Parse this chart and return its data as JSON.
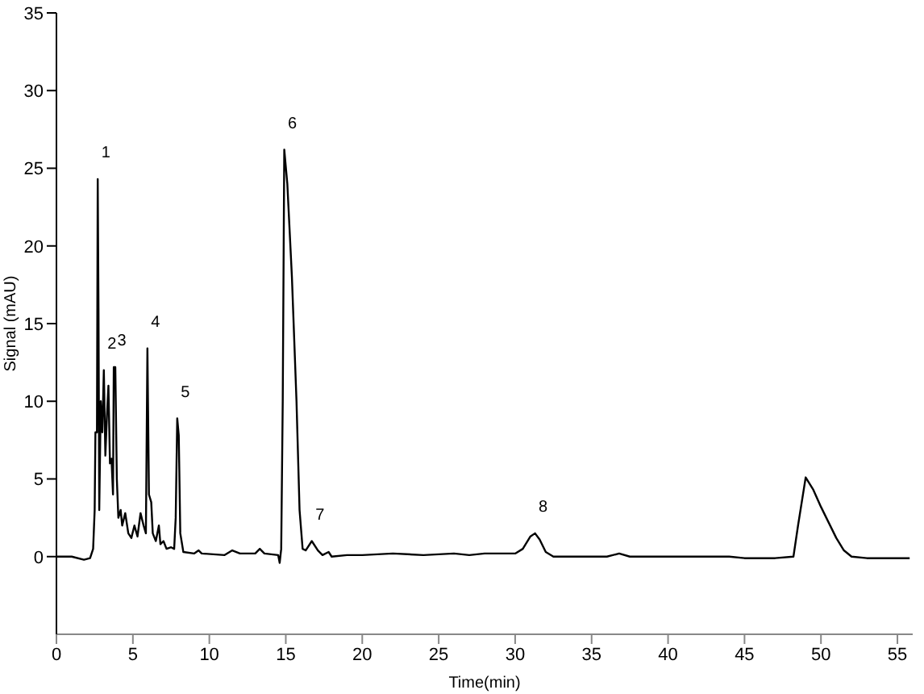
{
  "chart_data": {
    "type": "line",
    "xlabel": "Time(min)",
    "ylabel": "Signal (mAU)",
    "xlim": [
      0,
      56
    ],
    "xticks": [
      0,
      5,
      10,
      15,
      20,
      25,
      30,
      35,
      40,
      45,
      50,
      55
    ],
    "ylim": [
      -5,
      35
    ],
    "yticks": [
      0,
      5,
      10,
      15,
      20,
      25,
      30,
      35
    ],
    "grid": false,
    "marker": "none",
    "line_style": "solid",
    "x": [
      0,
      1,
      1.8,
      2.2,
      2.4,
      2.5,
      2.55,
      2.65,
      2.7,
      2.75,
      2.8,
      2.9,
      3.0,
      3.1,
      3.2,
      3.3,
      3.4,
      3.5,
      3.6,
      3.7,
      3.75,
      3.85,
      3.95,
      4.05,
      4.2,
      4.3,
      4.5,
      4.7,
      4.9,
      5.1,
      5.3,
      5.5,
      5.7,
      5.85,
      5.95,
      6.05,
      6.2,
      6.3,
      6.5,
      6.7,
      6.8,
      7.0,
      7.2,
      7.5,
      7.7,
      7.8,
      7.9,
      8.0,
      8.1,
      8.3,
      9,
      9.3,
      9.5,
      11,
      11.5,
      12,
      13,
      13.3,
      13.6,
      14.5,
      14.6,
      14.7,
      14.8,
      14.9,
      15.1,
      15.4,
      15.7,
      15.9,
      16.1,
      16.3,
      16.7,
      17.1,
      17.4,
      17.8,
      18,
      19,
      20,
      22,
      24,
      26,
      27,
      28,
      29,
      30,
      30.5,
      31,
      31.3,
      31.6,
      32,
      32.5,
      34,
      36,
      36.8,
      37.5,
      40,
      42,
      44,
      45,
      47,
      48.2,
      48.5,
      49,
      49.5,
      50,
      50.5,
      51,
      51.5,
      52,
      53,
      55,
      55.8
    ],
    "series": [
      {
        "color": "#000000",
        "values": [
          0,
          0,
          -0.2,
          -0.1,
          0.5,
          3,
          8,
          8,
          24.3,
          16,
          3,
          10,
          8,
          12,
          6.5,
          9,
          11,
          6,
          6.3,
          4,
          12.2,
          12.2,
          5,
          2.5,
          3,
          2,
          2.8,
          1.5,
          1.2,
          2,
          1.3,
          2.8,
          2,
          1.5,
          13.4,
          4,
          3.5,
          1.5,
          1,
          2,
          0.8,
          1,
          0.5,
          0.6,
          0.5,
          2.5,
          8.9,
          7.8,
          1.5,
          0.3,
          0.2,
          0.4,
          0.2,
          0.1,
          0.4,
          0.2,
          0.2,
          0.5,
          0.2,
          0.1,
          -0.4,
          0.5,
          10,
          26.2,
          24,
          18,
          10,
          3,
          0.5,
          0.4,
          1,
          0.4,
          0.1,
          0.3,
          0,
          0.1,
          0.1,
          0.2,
          0.1,
          0.2,
          0.1,
          0.2,
          0.2,
          0.2,
          0.5,
          1.3,
          1.5,
          1.1,
          0.3,
          0,
          0,
          0,
          0.2,
          0,
          0,
          0,
          0,
          -0.1,
          -0.1,
          0,
          2,
          5.1,
          4.3,
          3.2,
          2.2,
          1.2,
          0.4,
          0,
          -0.1,
          -0.1,
          -0.1
        ]
      }
    ],
    "annotations": [
      {
        "text": "1",
        "x": 2.7,
        "y": 24.3
      },
      {
        "text": "2",
        "x": 3.1,
        "y": 12
      },
      {
        "text": "3",
        "x": 3.75,
        "y": 12.2
      },
      {
        "text": "4",
        "x": 5.95,
        "y": 13.4
      },
      {
        "text": "5",
        "x": 7.9,
        "y": 8.9
      },
      {
        "text": "6",
        "x": 14.9,
        "y": 26.2
      },
      {
        "text": "7",
        "x": 16.7,
        "y": 1
      },
      {
        "text": "8",
        "x": 31.3,
        "y": 1.5
      }
    ]
  }
}
